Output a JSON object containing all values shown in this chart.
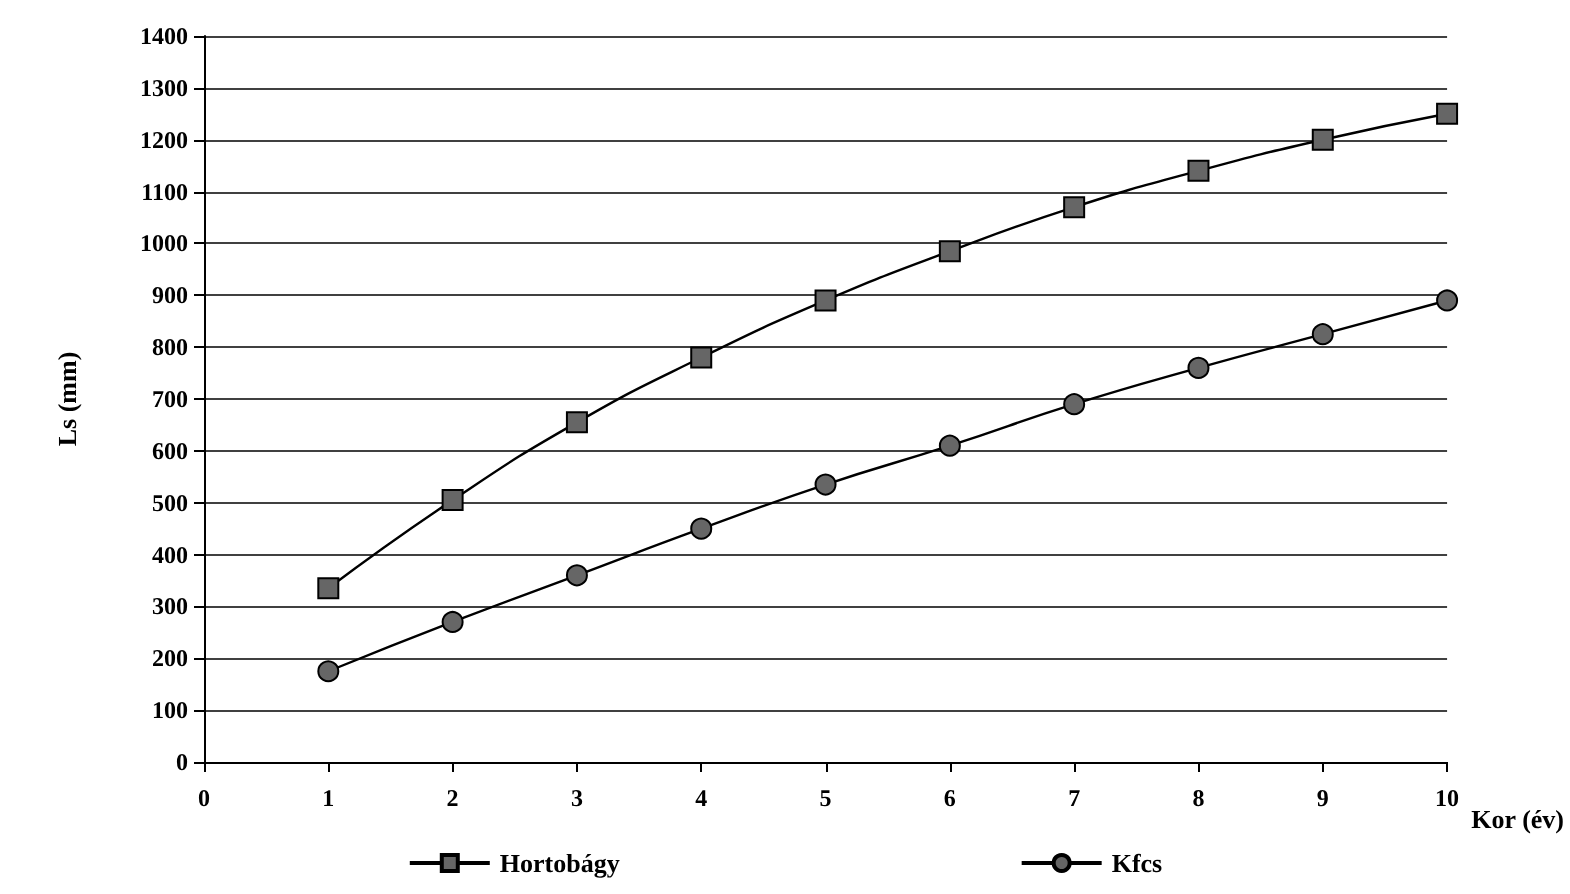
{
  "chart_data": {
    "type": "line",
    "xlabel": "Kor (év)",
    "ylabel": "Ls (mm)",
    "x": [
      1,
      2,
      3,
      4,
      5,
      6,
      7,
      8,
      9,
      10
    ],
    "series": [
      {
        "name": "Hortobágy",
        "color": "#000000",
        "marker": "square",
        "values": [
          335,
          505,
          655,
          780,
          890,
          985,
          1070,
          1140,
          1200,
          1250
        ]
      },
      {
        "name": "Kfcs",
        "color": "#000000",
        "marker": "circle",
        "values": [
          175,
          270,
          360,
          450,
          535,
          610,
          690,
          760,
          825,
          890
        ]
      }
    ],
    "xlim": [
      0,
      10
    ],
    "xticks": [
      0,
      1,
      2,
      3,
      4,
      5,
      6,
      7,
      8,
      9,
      10
    ],
    "ylim": [
      0,
      1400
    ],
    "yticks": [
      0,
      100,
      200,
      300,
      400,
      500,
      600,
      700,
      800,
      900,
      1000,
      1100,
      1200,
      1300,
      1400
    ],
    "grid": "y",
    "legend": "bottom",
    "line_style": "solid"
  }
}
